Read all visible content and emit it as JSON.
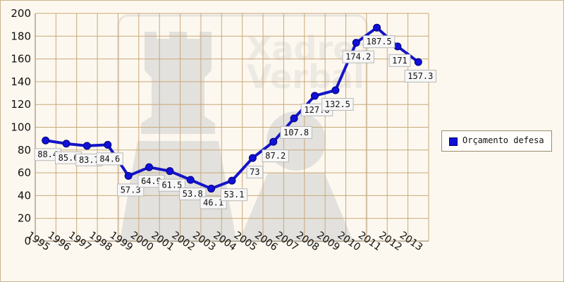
{
  "chart_data": {
    "type": "line",
    "title": "",
    "xlabel": "",
    "ylabel": "",
    "x": [
      "1995",
      "1996",
      "1997",
      "1998",
      "1999",
      "2000",
      "2001",
      "2002",
      "2003",
      "2004",
      "2005",
      "2006",
      "2007",
      "2008",
      "2009",
      "2010",
      "2011",
      "2012",
      "2013"
    ],
    "series": [
      {
        "name": "Orçamento defesa",
        "values": [
          88.4,
          85.6,
          83.7,
          84.6,
          57.3,
          64.9,
          61.5,
          53.8,
          46.1,
          53.1,
          73,
          87.2,
          107.8,
          127.6,
          132.5,
          174.2,
          187.5,
          171,
          157.3
        ],
        "labels": [
          "88.4",
          "85.6",
          "83.7",
          "84.6",
          "57.3",
          "64.9",
          "61.5",
          "53.8",
          "46.1",
          "53.1",
          "73",
          "87.2",
          "107.8",
          "127.6",
          "132.5",
          "174.2",
          "187.5",
          "171",
          "157.3"
        ]
      }
    ],
    "yticks": [
      "0",
      "20",
      "40",
      "60",
      "80",
      "100",
      "120",
      "140",
      "160",
      "180",
      "200"
    ],
    "ylim": [
      0,
      200
    ],
    "grid": true,
    "legend_position": "right",
    "colors": {
      "line": "#1414c8",
      "marker": "#1010d8",
      "grid": "#c8a878",
      "plot_bg": "#fdf8ef"
    }
  },
  "watermark": {
    "line1": "Xadrez",
    "line2": "Verbal"
  }
}
